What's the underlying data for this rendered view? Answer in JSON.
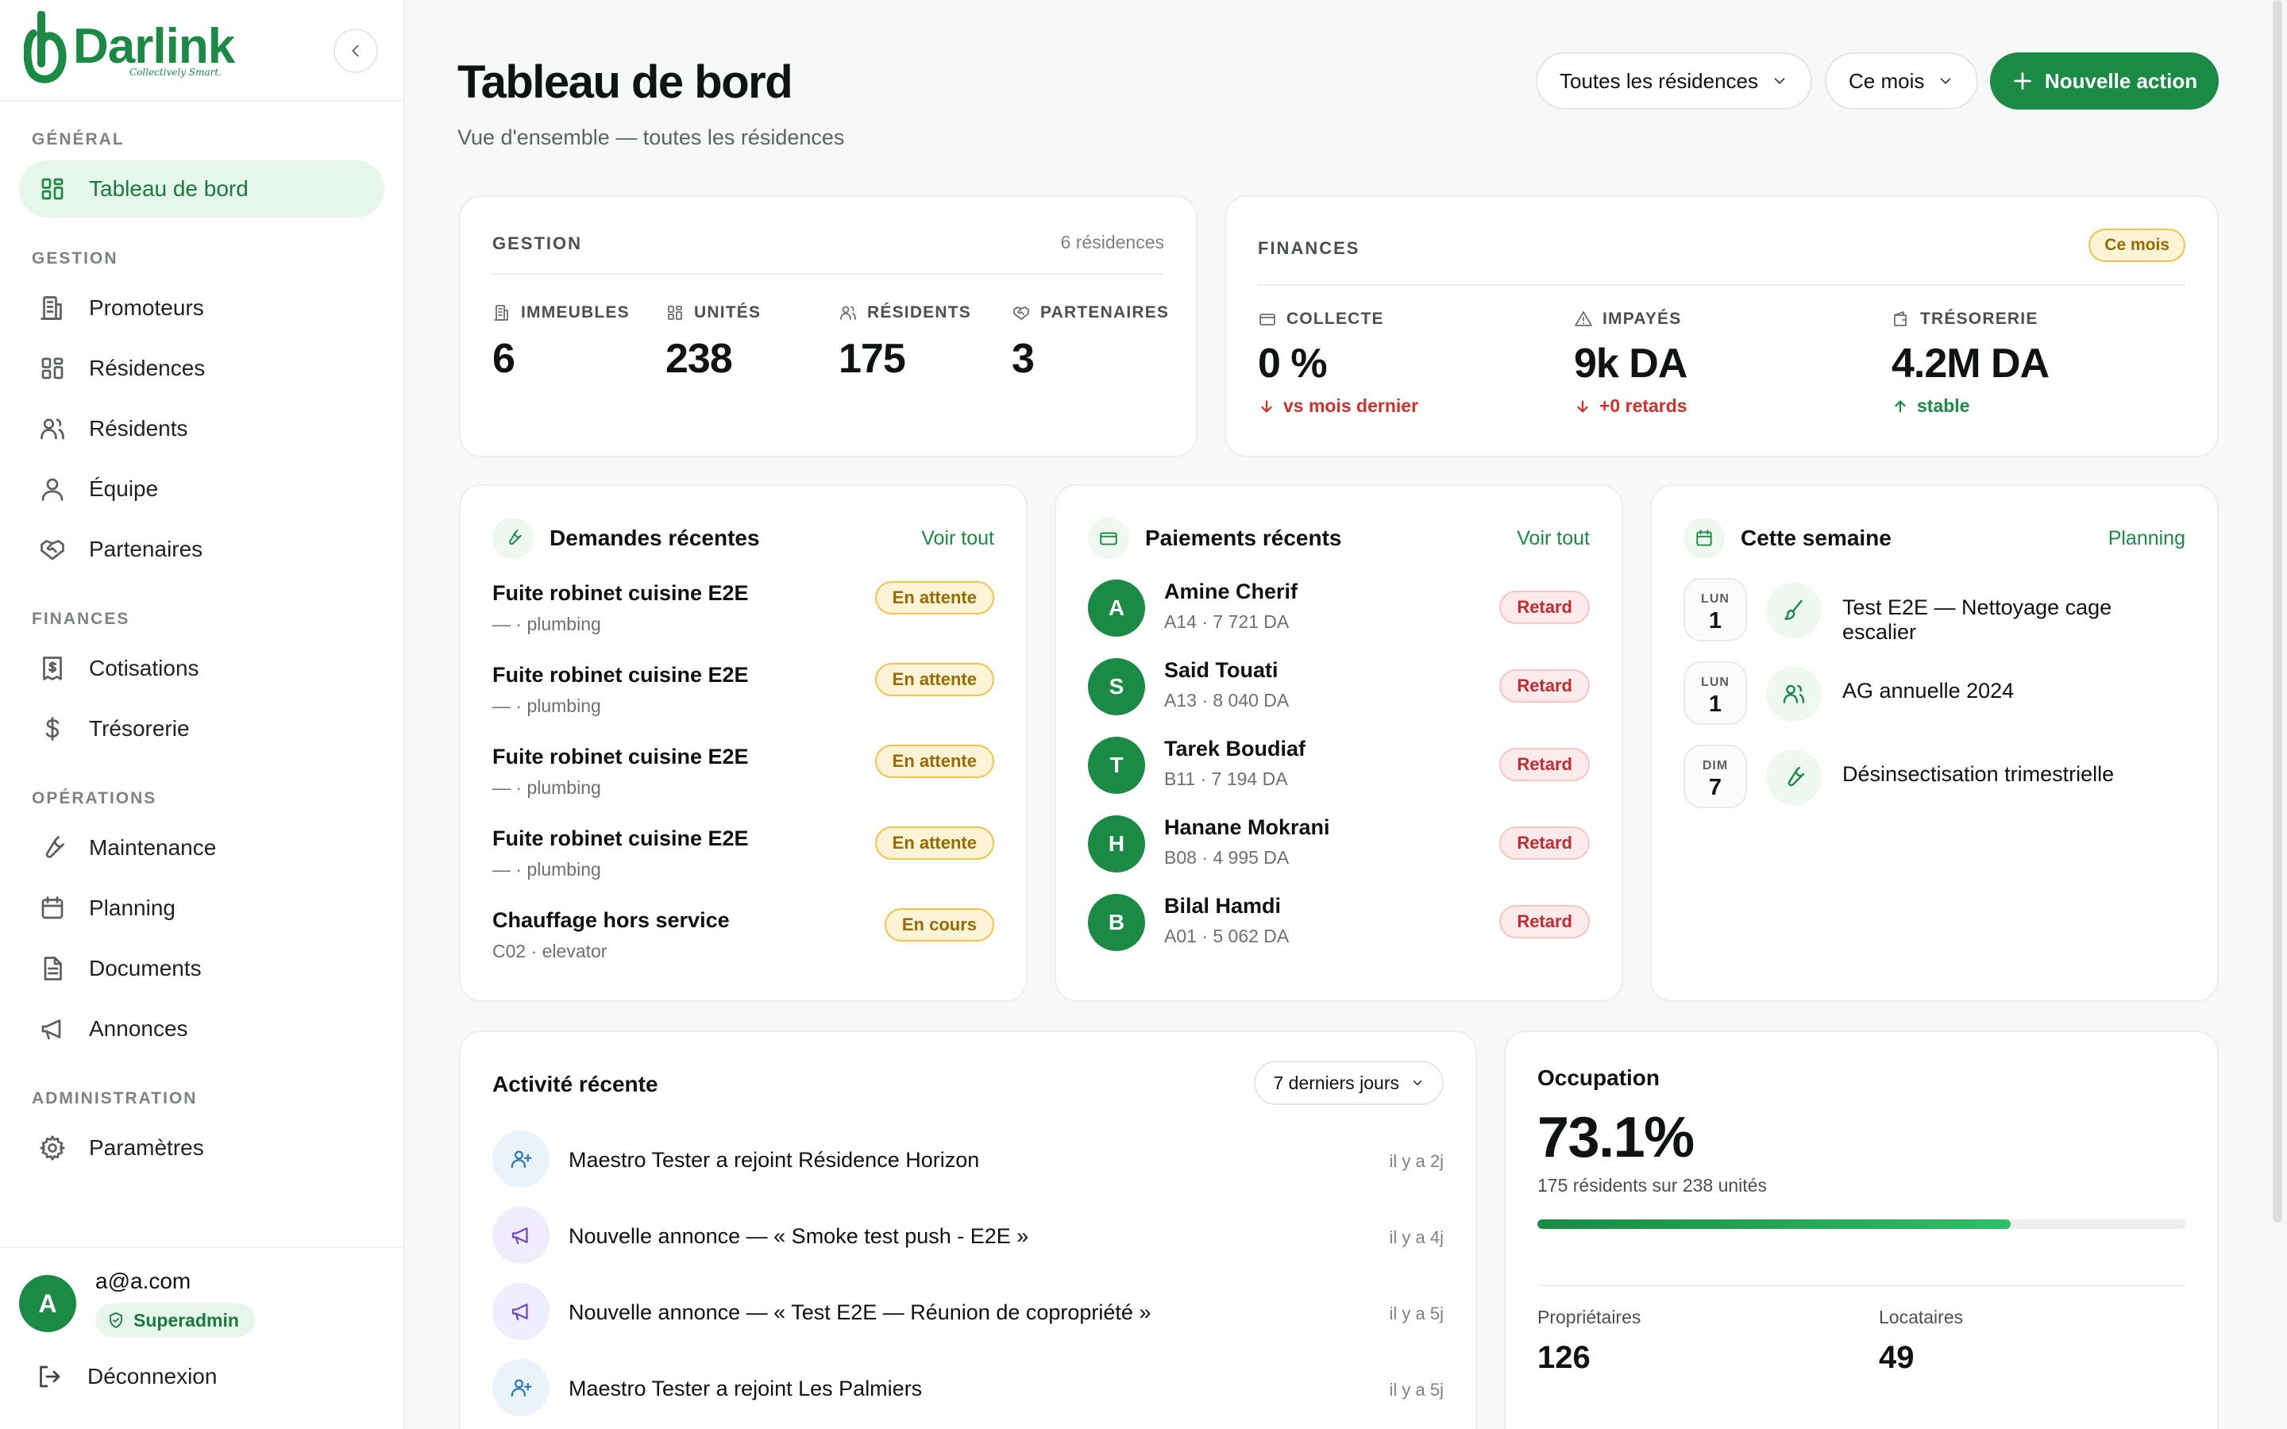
{
  "brand": {
    "name": "Darlink",
    "tagline": "Collectively Smart."
  },
  "sidebar": {
    "sections": [
      {
        "title": "GÉNÉRAL",
        "items": [
          {
            "label": "Tableau de bord",
            "icon": "grid-icon",
            "active": true
          }
        ]
      },
      {
        "title": "GESTION",
        "items": [
          {
            "label": "Promoteurs",
            "icon": "building-icon"
          },
          {
            "label": "Résidences",
            "icon": "grid-icon"
          },
          {
            "label": "Résidents",
            "icon": "users-icon"
          },
          {
            "label": "Équipe",
            "icon": "user-icon"
          },
          {
            "label": "Partenaires",
            "icon": "handshake-icon"
          }
        ]
      },
      {
        "title": "FINANCES",
        "items": [
          {
            "label": "Cotisations",
            "icon": "receipt-icon"
          },
          {
            "label": "Trésorerie",
            "icon": "dollar-icon"
          }
        ]
      },
      {
        "title": "OPÉRATIONS",
        "items": [
          {
            "label": "Maintenance",
            "icon": "wrench-icon"
          },
          {
            "label": "Planning",
            "icon": "calendar-icon"
          },
          {
            "label": "Documents",
            "icon": "document-icon"
          },
          {
            "label": "Annonces",
            "icon": "megaphone-icon"
          }
        ]
      },
      {
        "title": "ADMINISTRATION",
        "items": [
          {
            "label": "Paramètres",
            "icon": "gear-icon"
          }
        ]
      }
    ],
    "user": {
      "initial": "A",
      "email": "a@a.com",
      "role": "Superadmin"
    },
    "logout_label": "Déconnexion"
  },
  "header": {
    "title": "Tableau de bord",
    "subtitle": "Vue d'ensemble — toutes les résidences",
    "residence_filter": "Toutes les résidences",
    "period_filter": "Ce mois",
    "primary_action": "Nouvelle action"
  },
  "gestion": {
    "caption": "GESTION",
    "count": "6 résidences",
    "stats": [
      {
        "label": "IMMEUBLES",
        "value": "6",
        "icon": "building-icon"
      },
      {
        "label": "UNITÉS",
        "value": "238",
        "icon": "grid-icon"
      },
      {
        "label": "RÉSIDENTS",
        "value": "175",
        "icon": "users-icon"
      },
      {
        "label": "PARTENAIRES",
        "value": "3",
        "icon": "handshake-icon"
      }
    ]
  },
  "finances": {
    "caption": "FINANCES",
    "badge": "Ce mois",
    "stats": [
      {
        "label": "COLLECTE",
        "value": "0 %",
        "trend": "vs mois dernier",
        "direction": "down",
        "icon": "card-icon"
      },
      {
        "label": "IMPAYÉS",
        "value": "9k DA",
        "trend": "+0 retards",
        "direction": "down",
        "icon": "alert-icon"
      },
      {
        "label": "TRÉSORERIE",
        "value": "4.2M DA",
        "trend": "stable",
        "direction": "up",
        "icon": "wallet-icon"
      }
    ]
  },
  "requests": {
    "title": "Demandes récentes",
    "link": "Voir tout",
    "items": [
      {
        "title": "Fuite robinet cuisine E2E",
        "sub": "— · plumbing",
        "status": "En attente"
      },
      {
        "title": "Fuite robinet cuisine E2E",
        "sub": "— · plumbing",
        "status": "En attente"
      },
      {
        "title": "Fuite robinet cuisine E2E",
        "sub": "— · plumbing",
        "status": "En attente"
      },
      {
        "title": "Fuite robinet cuisine E2E",
        "sub": "— · plumbing",
        "status": "En attente"
      },
      {
        "title": "Chauffage hors service",
        "sub": "C02 · elevator",
        "status": "En cours"
      }
    ]
  },
  "payments": {
    "title": "Paiements récents",
    "link": "Voir tout",
    "items": [
      {
        "initial": "A",
        "name": "Amine Cherif",
        "sub": "A14 · 7 721 DA",
        "status": "Retard"
      },
      {
        "initial": "S",
        "name": "Said Touati",
        "sub": "A13 · 8 040 DA",
        "status": "Retard"
      },
      {
        "initial": "T",
        "name": "Tarek Boudiaf",
        "sub": "B11 · 7 194 DA",
        "status": "Retard"
      },
      {
        "initial": "H",
        "name": "Hanane Mokrani",
        "sub": "B08 · 4 995 DA",
        "status": "Retard"
      },
      {
        "initial": "B",
        "name": "Bilal Hamdi",
        "sub": "A01 · 5 062 DA",
        "status": "Retard"
      }
    ]
  },
  "week": {
    "title": "Cette semaine",
    "link": "Planning",
    "items": [
      {
        "dow": "LUN",
        "day": "1",
        "title": "Test E2E — Nettoyage cage escalier",
        "icon": "brush-icon"
      },
      {
        "dow": "LUN",
        "day": "1",
        "title": "AG annuelle 2024",
        "icon": "users-icon"
      },
      {
        "dow": "DIM",
        "day": "7",
        "title": "Désinsectisation trimestrielle",
        "icon": "wrench-icon"
      }
    ]
  },
  "activity": {
    "title": "Activité récente",
    "filter": "7 derniers jours",
    "items": [
      {
        "text": "Maestro Tester a rejoint Résidence Horizon",
        "time": "il y a 2j",
        "icon": "user-plus-icon",
        "tone": "blue"
      },
      {
        "text": "Nouvelle annonce — « Smoke test push - E2E »",
        "time": "il y a 4j",
        "icon": "megaphone-icon",
        "tone": "purple"
      },
      {
        "text": "Nouvelle annonce — « Test E2E — Réunion de copropriété »",
        "time": "il y a 5j",
        "icon": "megaphone-icon",
        "tone": "purple"
      },
      {
        "text": "Maestro Tester a rejoint Les Palmiers",
        "time": "il y a 5j",
        "icon": "user-plus-icon",
        "tone": "blue"
      }
    ]
  },
  "occupation": {
    "title": "Occupation",
    "value": "73.1%",
    "fill_fraction": 0.731,
    "sub": "175 résidents sur 238 unités",
    "owners_label": "Propriétaires",
    "owners_value": "126",
    "tenants_label": "Locataires",
    "tenants_value": "49"
  },
  "colors": {
    "brand": "#1a8a44",
    "warning": "#f2c34e",
    "danger": "#c42b2f"
  }
}
